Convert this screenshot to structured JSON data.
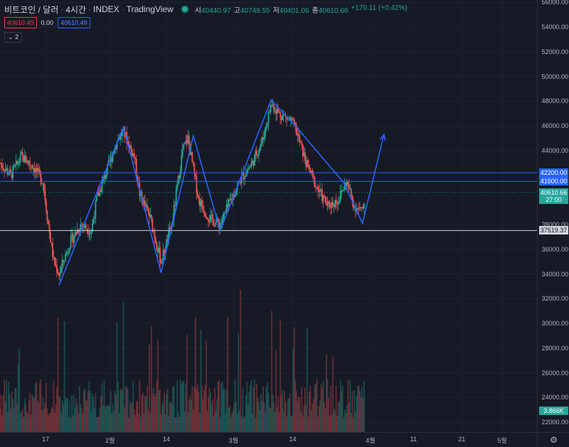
{
  "header": {
    "symbol": "비트코인 / 달러",
    "interval": "4시간",
    "exchange": "INDEX",
    "source": "TradingView",
    "ohlc": {
      "o_key": "시",
      "o_val": "40440.97",
      "h_key": "고",
      "h_val": "40749.55",
      "l_key": "저",
      "l_val": "40401.06",
      "c_key": "종",
      "c_val": "40610.66",
      "change": "+170.11 (+0.42%)"
    }
  },
  "trade": {
    "sell": "40610.49",
    "spread": "0.00",
    "buy": "40610.49"
  },
  "collapse_label": "2",
  "colors": {
    "up": "#26a69a",
    "down": "#ef5350",
    "drawing": "#2962ff",
    "bg": "#161a25"
  },
  "chart_data": {
    "type": "candlestick",
    "ylim": [
      22000,
      57000
    ],
    "price_ticks": [
      56000,
      54000,
      52000,
      50000,
      48000,
      46000,
      44000,
      38000,
      36000,
      34000,
      32000,
      30000,
      28000,
      26000,
      24000,
      22000
    ],
    "price_tick_labels": [
      "56000.00",
      "54000.00",
      "52000.00",
      "50000.00",
      "48000.00",
      "46000.00",
      "44000.00",
      "38000.00",
      "36000.00",
      "34000.00",
      "32000.00",
      "30000.00",
      "28000.00",
      "26000.00",
      "24000.00",
      "22000.00"
    ],
    "time_labels": [
      "17",
      "2월",
      "14",
      "3월",
      "14",
      "4월",
      "11",
      "21",
      "5월"
    ],
    "price_tags": [
      {
        "value": 42200,
        "label": "42200.00",
        "bg": "#2962ff",
        "fg": "#ffffff"
      },
      {
        "value": 41500,
        "label": "41500.00",
        "bg": "#2962ff",
        "fg": "#ffffff"
      },
      {
        "value": 40610.66,
        "label": "40610.66",
        "sub": "27:00",
        "bg": "#26a69a",
        "fg": "#ffffff"
      },
      {
        "value": 37519.37,
        "label": "37519.37",
        "bg": "#d1d4dc",
        "fg": "#131722"
      }
    ],
    "volume_tag": "3.866K",
    "horizontal_lines": [
      {
        "value": 42200,
        "color": "#2962ff"
      },
      {
        "value": 41500,
        "color": "#2962ff"
      },
      {
        "value": 37519.37,
        "color": "#d1d4dc"
      }
    ],
    "zigzag": [
      [
        0.11,
        33100
      ],
      [
        0.23,
        45900
      ],
      [
        0.3,
        34100
      ],
      [
        0.36,
        45200
      ],
      [
        0.41,
        37500
      ],
      [
        0.505,
        48100
      ],
      [
        0.55,
        46000
      ],
      [
        0.64,
        41400
      ],
      [
        0.675,
        38100
      ],
      [
        0.715,
        45300
      ]
    ],
    "anchors": [
      [
        0.0,
        43000
      ],
      [
        0.02,
        42000
      ],
      [
        0.04,
        43500
      ],
      [
        0.06,
        42800
      ],
      [
        0.08,
        41500
      ],
      [
        0.09,
        38000
      ],
      [
        0.1,
        35000
      ],
      [
        0.11,
        34000
      ],
      [
        0.13,
        36500
      ],
      [
        0.15,
        38000
      ],
      [
        0.17,
        37500
      ],
      [
        0.18,
        40000
      ],
      [
        0.2,
        42500
      ],
      [
        0.22,
        45000
      ],
      [
        0.23,
        45500
      ],
      [
        0.25,
        43500
      ],
      [
        0.26,
        40500
      ],
      [
        0.28,
        38500
      ],
      [
        0.3,
        35000
      ],
      [
        0.32,
        38000
      ],
      [
        0.34,
        44000
      ],
      [
        0.35,
        45000
      ],
      [
        0.37,
        40000
      ],
      [
        0.39,
        38500
      ],
      [
        0.41,
        38000
      ],
      [
        0.43,
        40000
      ],
      [
        0.45,
        41800
      ],
      [
        0.47,
        43000
      ],
      [
        0.49,
        45000
      ],
      [
        0.505,
        47800
      ],
      [
        0.52,
        47000
      ],
      [
        0.54,
        46500
      ],
      [
        0.55,
        45800
      ],
      [
        0.57,
        43000
      ],
      [
        0.59,
        41000
      ],
      [
        0.61,
        39500
      ],
      [
        0.63,
        40000
      ],
      [
        0.645,
        41500
      ],
      [
        0.66,
        39500
      ],
      [
        0.675,
        39000
      ],
      [
        0.68,
        40600
      ]
    ]
  }
}
